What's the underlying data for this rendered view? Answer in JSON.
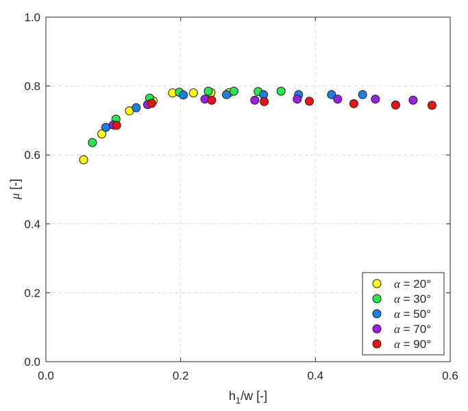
{
  "chart_data": {
    "type": "scatter",
    "xlabel": "h1/w [-]",
    "ylabel": "μ [-]",
    "xlim": [
      0,
      0.6
    ],
    "ylim": [
      0,
      1.0
    ],
    "x_ticks": [
      "0.0",
      "0.2",
      "0.4",
      "0.6"
    ],
    "y_ticks": [
      "0.0",
      "0.2",
      "0.4",
      "0.6",
      "0.8",
      "1.0"
    ],
    "grid": true,
    "legend_position": "bottom-right",
    "series": [
      {
        "name": "α = 20°",
        "color": "#ffff00",
        "points": [
          [
            0.056,
            0.586
          ],
          [
            0.083,
            0.661
          ],
          [
            0.124,
            0.728
          ],
          [
            0.159,
            0.757
          ],
          [
            0.188,
            0.78
          ],
          [
            0.219,
            0.78
          ],
          [
            0.245,
            0.781
          ],
          [
            0.272,
            0.781
          ]
        ]
      },
      {
        "name": "α = 30°",
        "color": "#26e84f",
        "points": [
          [
            0.069,
            0.636
          ],
          [
            0.104,
            0.704
          ],
          [
            0.154,
            0.765
          ],
          [
            0.198,
            0.782
          ],
          [
            0.241,
            0.785
          ],
          [
            0.279,
            0.785
          ],
          [
            0.315,
            0.784
          ],
          [
            0.349,
            0.785
          ]
        ]
      },
      {
        "name": "α = 50°",
        "color": "#1a80e6",
        "points": [
          [
            0.089,
            0.68
          ],
          [
            0.134,
            0.737
          ],
          [
            0.204,
            0.774
          ],
          [
            0.268,
            0.775
          ],
          [
            0.323,
            0.775
          ],
          [
            0.375,
            0.775
          ],
          [
            0.424,
            0.775
          ],
          [
            0.47,
            0.775
          ]
        ]
      },
      {
        "name": "α = 70°",
        "color": "#9f1ee6",
        "points": [
          [
            0.1,
            0.687
          ],
          [
            0.151,
            0.746
          ],
          [
            0.236,
            0.762
          ],
          [
            0.31,
            0.759
          ],
          [
            0.373,
            0.762
          ],
          [
            0.433,
            0.762
          ],
          [
            0.489,
            0.762
          ],
          [
            0.545,
            0.759
          ]
        ]
      },
      {
        "name": "α = 90°",
        "color": "#ee1111",
        "points": [
          [
            0.105,
            0.686
          ],
          [
            0.157,
            0.75
          ],
          [
            0.246,
            0.759
          ],
          [
            0.324,
            0.755
          ],
          [
            0.391,
            0.756
          ],
          [
            0.457,
            0.749
          ],
          [
            0.519,
            0.745
          ],
          [
            0.573,
            0.744
          ]
        ]
      }
    ]
  }
}
